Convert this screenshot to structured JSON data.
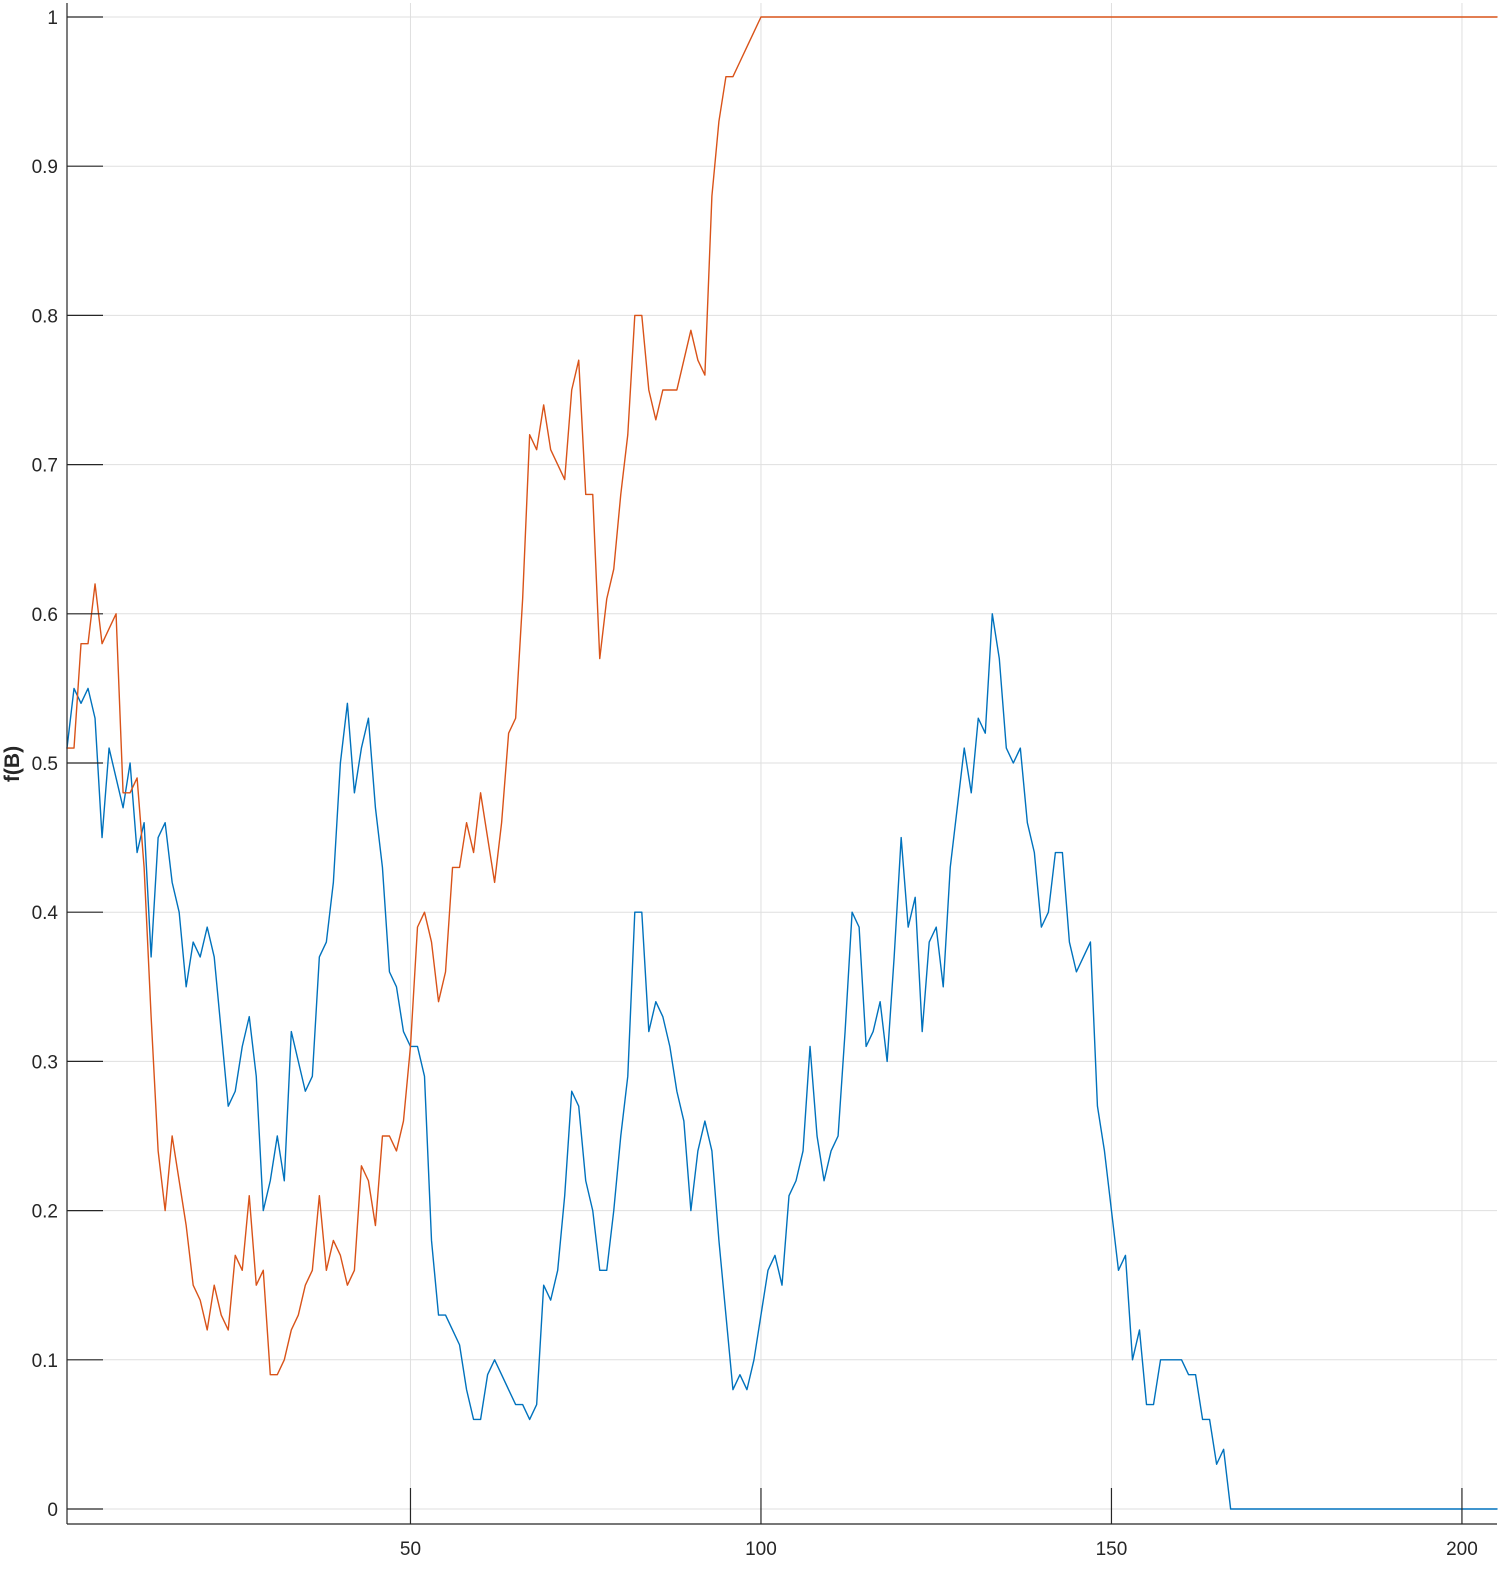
{
  "chart_data": {
    "type": "line",
    "title": "",
    "xlabel": "",
    "ylabel": "f(B)",
    "xlim": [
      1,
      205
    ],
    "ylim": [
      0,
      1
    ],
    "xticks": [
      50,
      100,
      150,
      200
    ],
    "yticks": [
      0,
      0.1,
      0.2,
      0.3,
      0.4,
      0.5,
      0.6,
      0.7,
      0.8,
      0.9,
      1
    ],
    "grid": true,
    "series": [
      {
        "color": "#0072BD",
        "x": [
          1,
          2,
          3,
          4,
          5,
          6,
          7,
          8,
          9,
          10,
          11,
          12,
          13,
          14,
          15,
          16,
          17,
          18,
          19,
          20,
          21,
          22,
          23,
          24,
          25,
          26,
          27,
          28,
          29,
          30,
          31,
          32,
          33,
          34,
          35,
          36,
          37,
          38,
          39,
          40,
          41,
          42,
          43,
          44,
          45,
          46,
          47,
          48,
          49,
          50,
          51,
          52,
          53,
          54,
          55,
          56,
          57,
          58,
          59,
          60,
          61,
          62,
          63,
          64,
          65,
          66,
          67,
          68,
          69,
          70,
          71,
          72,
          73,
          74,
          75,
          76,
          77,
          78,
          79,
          80,
          81,
          82,
          83,
          84,
          85,
          86,
          87,
          88,
          89,
          90,
          91,
          92,
          93,
          94,
          95,
          96,
          97,
          98,
          99,
          100,
          101,
          102,
          103,
          104,
          105,
          106,
          107,
          108,
          109,
          110,
          111,
          112,
          113,
          114,
          115,
          116,
          117,
          118,
          119,
          120,
          121,
          122,
          123,
          124,
          125,
          126,
          127,
          128,
          129,
          130,
          131,
          132,
          133,
          134,
          135,
          136,
          137,
          138,
          139,
          140,
          141,
          142,
          143,
          144,
          145,
          146,
          147,
          148,
          149,
          150,
          151,
          152,
          153,
          154,
          155,
          156,
          157,
          158,
          159,
          160,
          161,
          162,
          163,
          164,
          165,
          166,
          167,
          205
        ],
        "values": [
          0.51,
          0.55,
          0.54,
          0.55,
          0.53,
          0.45,
          0.51,
          0.49,
          0.47,
          0.5,
          0.44,
          0.46,
          0.37,
          0.45,
          0.46,
          0.42,
          0.4,
          0.35,
          0.38,
          0.37,
          0.39,
          0.37,
          0.32,
          0.27,
          0.28,
          0.31,
          0.33,
          0.29,
          0.2,
          0.22,
          0.25,
          0.22,
          0.32,
          0.3,
          0.28,
          0.29,
          0.37,
          0.38,
          0.42,
          0.5,
          0.54,
          0.48,
          0.51,
          0.53,
          0.47,
          0.43,
          0.36,
          0.35,
          0.32,
          0.31,
          0.31,
          0.29,
          0.18,
          0.13,
          0.13,
          0.12,
          0.11,
          0.08,
          0.06,
          0.06,
          0.09,
          0.1,
          0.09,
          0.08,
          0.07,
          0.07,
          0.06,
          0.07,
          0.15,
          0.14,
          0.16,
          0.21,
          0.28,
          0.27,
          0.22,
          0.2,
          0.16,
          0.16,
          0.2,
          0.25,
          0.29,
          0.4,
          0.4,
          0.32,
          0.34,
          0.33,
          0.31,
          0.28,
          0.26,
          0.2,
          0.24,
          0.26,
          0.24,
          0.18,
          0.13,
          0.08,
          0.09,
          0.08,
          0.1,
          0.13,
          0.16,
          0.17,
          0.15,
          0.21,
          0.22,
          0.24,
          0.31,
          0.25,
          0.22,
          0.24,
          0.25,
          0.32,
          0.4,
          0.39,
          0.31,
          0.32,
          0.34,
          0.3,
          0.37,
          0.45,
          0.39,
          0.41,
          0.32,
          0.38,
          0.39,
          0.35,
          0.43,
          0.47,
          0.51,
          0.48,
          0.53,
          0.52,
          0.6,
          0.57,
          0.51,
          0.5,
          0.51,
          0.46,
          0.44,
          0.39,
          0.4,
          0.44,
          0.44,
          0.38,
          0.36,
          0.37,
          0.38,
          0.27,
          0.24,
          0.2,
          0.16,
          0.17,
          0.1,
          0.12,
          0.07,
          0.07,
          0.1,
          0.1,
          0.1,
          0.1,
          0.09,
          0.09,
          0.06,
          0.06,
          0.03,
          0.04,
          0.0,
          0.0
        ]
      },
      {
        "color": "#D95319",
        "x": [
          1,
          2,
          3,
          4,
          5,
          6,
          7,
          8,
          9,
          10,
          11,
          12,
          13,
          14,
          15,
          16,
          17,
          18,
          19,
          20,
          21,
          22,
          23,
          24,
          25,
          26,
          27,
          28,
          29,
          30,
          31,
          32,
          33,
          34,
          35,
          36,
          37,
          38,
          39,
          40,
          41,
          42,
          43,
          44,
          45,
          46,
          47,
          48,
          49,
          50,
          51,
          52,
          53,
          54,
          55,
          56,
          57,
          58,
          59,
          60,
          61,
          62,
          63,
          64,
          65,
          66,
          67,
          68,
          69,
          70,
          71,
          72,
          73,
          74,
          75,
          76,
          77,
          78,
          79,
          80,
          81,
          82,
          83,
          84,
          85,
          86,
          87,
          88,
          89,
          90,
          91,
          92,
          93,
          94,
          95,
          96,
          97,
          98,
          99,
          100,
          205
        ],
        "values": [
          0.51,
          0.51,
          0.58,
          0.58,
          0.62,
          0.58,
          0.59,
          0.6,
          0.48,
          0.48,
          0.49,
          0.43,
          0.33,
          0.24,
          0.2,
          0.25,
          0.22,
          0.19,
          0.15,
          0.14,
          0.12,
          0.15,
          0.13,
          0.12,
          0.17,
          0.16,
          0.21,
          0.15,
          0.16,
          0.09,
          0.09,
          0.1,
          0.12,
          0.13,
          0.15,
          0.16,
          0.21,
          0.16,
          0.18,
          0.17,
          0.15,
          0.16,
          0.23,
          0.22,
          0.19,
          0.25,
          0.25,
          0.24,
          0.26,
          0.31,
          0.39,
          0.4,
          0.38,
          0.34,
          0.36,
          0.43,
          0.43,
          0.46,
          0.44,
          0.48,
          0.45,
          0.42,
          0.46,
          0.52,
          0.53,
          0.61,
          0.72,
          0.71,
          0.74,
          0.71,
          0.7,
          0.69,
          0.75,
          0.77,
          0.68,
          0.68,
          0.57,
          0.61,
          0.63,
          0.68,
          0.72,
          0.8,
          0.8,
          0.75,
          0.73,
          0.75,
          0.75,
          0.75,
          0.77,
          0.79,
          0.77,
          0.76,
          0.88,
          0.93,
          0.96,
          0.96,
          0.97,
          0.98,
          0.99,
          1.0,
          1.0
        ]
      }
    ]
  }
}
